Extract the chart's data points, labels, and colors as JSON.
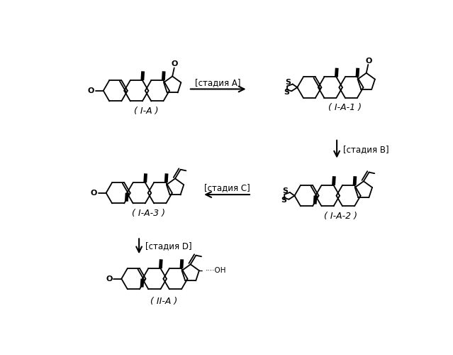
{
  "background_color": "#ffffff",
  "line_color": "#000000",
  "text_color": "#000000",
  "fig_width": 6.39,
  "fig_height": 5.0,
  "dpi": 100,
  "labels": {
    "IA": "( I-A )",
    "IA1": "( I-A-1 )",
    "IA2": "( I-A-2 )",
    "IA3": "( I-A-3 )",
    "IIA": "( II-A )"
  },
  "stage_labels": {
    "A": "[стадия A]",
    "B": "[стадия B]",
    "C": "[стадия C]",
    "D": "[стадия D]"
  },
  "font_size_label": 9,
  "font_size_stage": 8.5,
  "font_size_atom": 8
}
